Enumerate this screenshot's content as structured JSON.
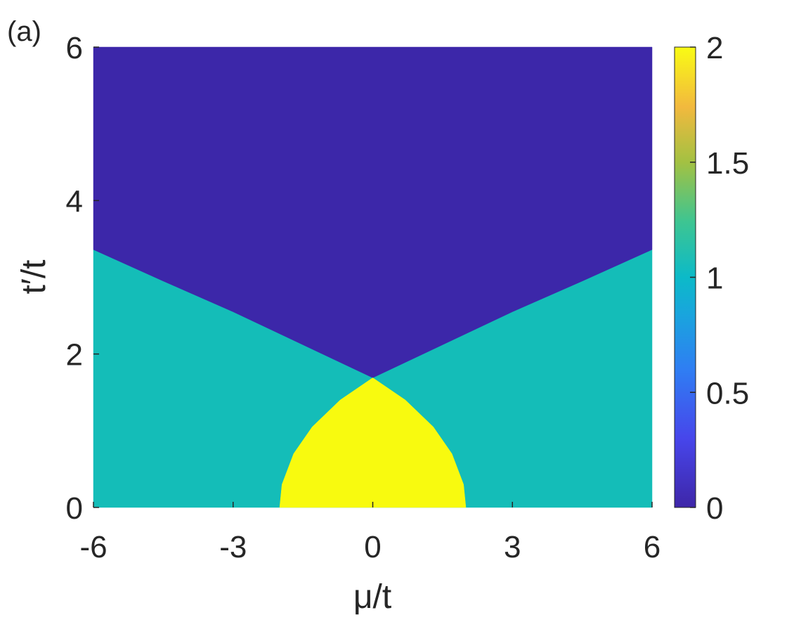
{
  "chart_data": {
    "type": "phase",
    "label": "(a)",
    "xlabel": "μ/t",
    "ylabel": "t′/t",
    "xlim": [
      -6,
      6
    ],
    "ylim": [
      0,
      6
    ],
    "xticks": [
      -6,
      -3,
      0,
      3,
      6
    ],
    "yticks": [
      0,
      2,
      4,
      6
    ],
    "clim": [
      0,
      2
    ],
    "cticks": [
      0,
      0.5,
      1,
      1.5,
      2
    ],
    "regions": [
      {
        "value": 1,
        "color": "#14bdb8",
        "x": [
          -6,
          -6,
          -4.5,
          -3,
          -1.5,
          0,
          1.5,
          3,
          4.5,
          6,
          6
        ],
        "y": [
          0,
          3.36,
          2.95,
          2.55,
          2.12,
          1.69,
          2.12,
          2.55,
          2.95,
          3.36,
          0
        ]
      },
      {
        "value": 0,
        "color": "#3c27a9",
        "x": [
          -6,
          6,
          6,
          4.5,
          3,
          1.5,
          0,
          -1.5,
          -3,
          -4.5,
          -6
        ],
        "y": [
          6,
          6,
          3.36,
          2.95,
          2.55,
          2.12,
          1.69,
          2.12,
          2.55,
          2.95,
          3.36
        ]
      },
      {
        "value": 2,
        "color": "#f8fa0f",
        "x": [
          -2,
          -1.95,
          -1.7,
          -1.3,
          -0.7,
          0,
          0.7,
          1.3,
          1.7,
          1.95,
          2
        ],
        "y": [
          0,
          0.3,
          0.7,
          1.05,
          1.4,
          1.69,
          1.4,
          1.05,
          0.7,
          0.3,
          0
        ]
      }
    ]
  }
}
